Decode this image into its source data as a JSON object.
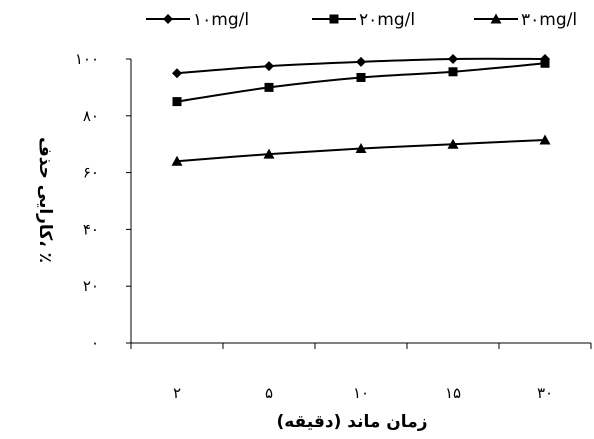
{
  "chart_data": {
    "type": "line",
    "title": "",
    "xlabel": "زمان ماند (دقیقه)",
    "ylabel": "کارایی حذف، ٪",
    "categories": [
      "۲",
      "۵",
      "۱۰",
      "۱۵",
      "۳۰"
    ],
    "y_ticks": [
      "۰",
      "۲۰",
      "۴۰",
      "۶۰",
      "۸۰",
      "۱۰۰"
    ],
    "ylim": [
      0,
      100
    ],
    "grid": false,
    "legend_position": "top",
    "series": [
      {
        "name": "۱۰mg/l",
        "marker": "diamond",
        "values": [
          95,
          97.5,
          99,
          100,
          100
        ]
      },
      {
        "name": "۲۰mg/l",
        "marker": "square",
        "values": [
          85,
          90,
          93.5,
          95.5,
          98.5
        ]
      },
      {
        "name": "۳۰mg/l",
        "marker": "triangle",
        "values": [
          64,
          66.5,
          68.5,
          70,
          71.5
        ]
      }
    ],
    "line_color": "#000000"
  }
}
